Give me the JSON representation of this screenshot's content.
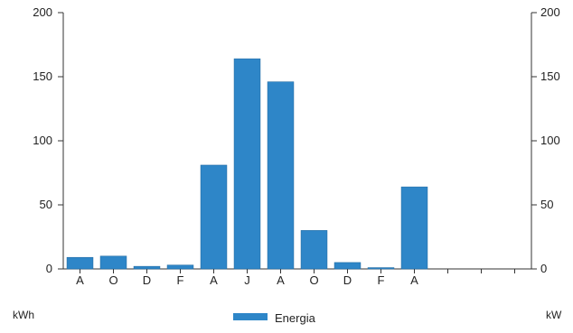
{
  "chart_data": {
    "type": "bar",
    "categories": [
      "A",
      "O",
      "D",
      "F",
      "A",
      "J",
      "A",
      "O",
      "D",
      "F",
      "A",
      "",
      "",
      ""
    ],
    "series": [
      {
        "name": "Energia",
        "color": "#2e86c8",
        "values": [
          9,
          10,
          2,
          3,
          81,
          164,
          146,
          30,
          5,
          1,
          64,
          0,
          0,
          0
        ]
      }
    ],
    "ylim": [
      0,
      200
    ],
    "yticks": [
      0,
      50,
      100,
      150,
      200
    ],
    "y2lim": [
      0,
      200
    ],
    "y2ticks": [
      0,
      50,
      100,
      150,
      200
    ],
    "ylabel": "kWh",
    "y2label": "kW",
    "legend_position": "bottom-center",
    "grid": false
  }
}
